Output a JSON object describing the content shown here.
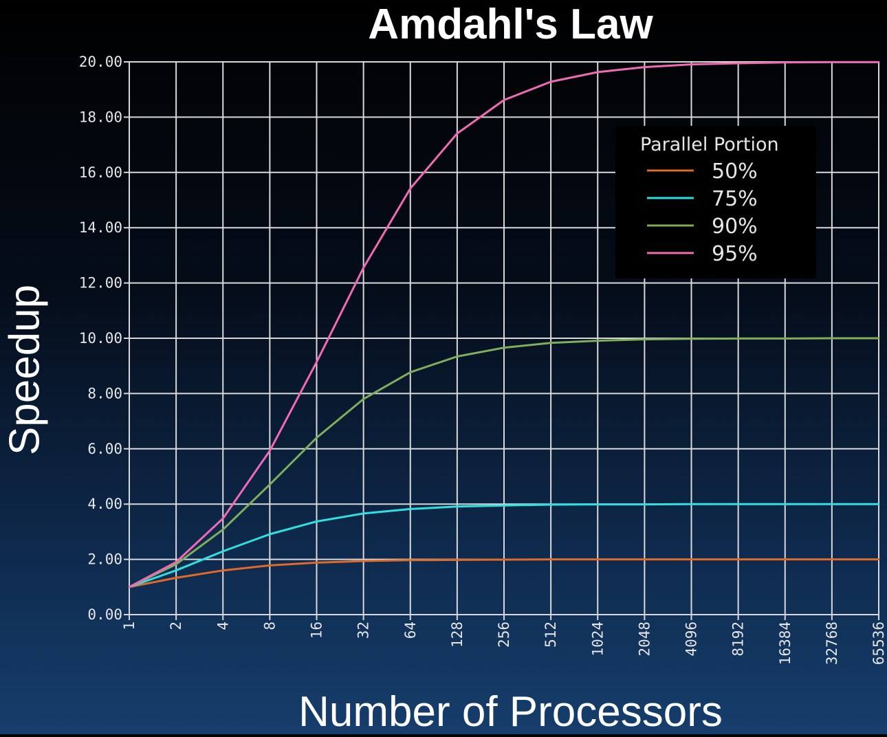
{
  "chart_data": {
    "type": "line",
    "title": "Amdahl's Law",
    "xlabel": "Number of Processors",
    "ylabel": "Speedup",
    "x_scale": "log2",
    "categories": [
      "1",
      "2",
      "4",
      "8",
      "16",
      "32",
      "64",
      "128",
      "256",
      "512",
      "1024",
      "2048",
      "4096",
      "8192",
      "16384",
      "32768",
      "65536"
    ],
    "yticks": [
      "0.00",
      "2.00",
      "4.00",
      "6.00",
      "8.00",
      "10.00",
      "12.00",
      "14.00",
      "16.00",
      "18.00",
      "20.00"
    ],
    "ylim": [
      0,
      20
    ],
    "grid": true,
    "legend_title": "Parallel Portion",
    "legend_position": "top-right",
    "series": [
      {
        "name": "50%",
        "color": "#e06a28",
        "values": [
          1.0,
          1.33,
          1.6,
          1.78,
          1.88,
          1.94,
          1.97,
          1.98,
          1.99,
          2.0,
          2.0,
          2.0,
          2.0,
          2.0,
          2.0,
          2.0,
          2.0
        ]
      },
      {
        "name": "75%",
        "color": "#2fe0e0",
        "values": [
          1.0,
          1.6,
          2.29,
          2.91,
          3.37,
          3.66,
          3.82,
          3.91,
          3.95,
          3.98,
          3.99,
          3.99,
          4.0,
          4.0,
          4.0,
          4.0,
          4.0
        ]
      },
      {
        "name": "90%",
        "color": "#7fae5c",
        "values": [
          1.0,
          1.82,
          3.08,
          4.71,
          6.4,
          7.8,
          8.77,
          9.34,
          9.66,
          9.83,
          9.91,
          9.96,
          9.98,
          9.99,
          9.99,
          10.0,
          10.0
        ]
      },
      {
        "name": "95%",
        "color": "#f06ab4",
        "values": [
          1.0,
          1.9,
          3.48,
          5.93,
          9.14,
          12.55,
          15.42,
          17.41,
          18.62,
          19.28,
          19.63,
          19.81,
          19.91,
          19.95,
          19.98,
          19.99,
          19.99
        ]
      }
    ]
  }
}
